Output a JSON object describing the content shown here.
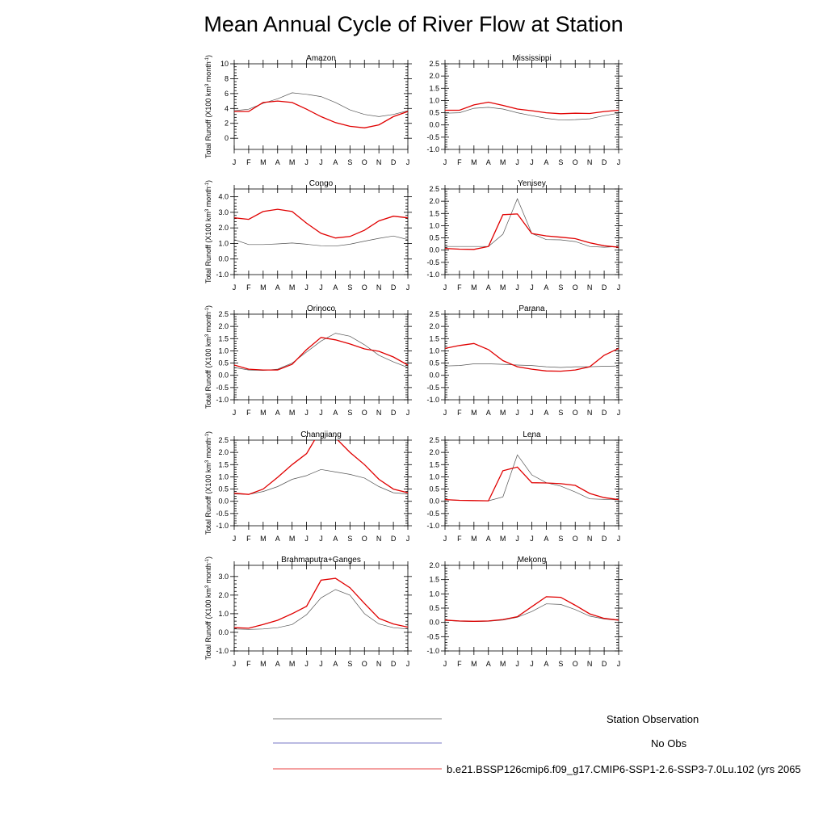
{
  "figure_title": "Mean Annual Cycle of River Flow at Station",
  "ylabel_text": "Total Runoff (X100 km",
  "ylabel_sup": "3",
  "ylabel_mid": " month",
  "ylabel_sup2": "-1",
  "ylabel_end": ")",
  "legend": [
    {
      "label": "Station Observation",
      "color": "#555555"
    },
    {
      "label": "No Obs",
      "color": "#4a4ab0"
    },
    {
      "label": "b.e21.BSSP126cmip6.f09_g17.CMIP6-SSP1-2.6-SSP3-7.0Lu.102 (yrs 2065",
      "color": "#e00000"
    }
  ],
  "chart_data": [
    {
      "type": "line",
      "title": "Amazon",
      "categories": [
        "J",
        "F",
        "M",
        "A",
        "M",
        "J",
        "J",
        "A",
        "S",
        "O",
        "N",
        "D",
        "J"
      ],
      "ylim": [
        -1.5,
        10
      ],
      "yticks": [
        0,
        2,
        4,
        6,
        8,
        10
      ],
      "ytick_labels": [
        "0",
        "2",
        "4",
        "6",
        "8",
        "10"
      ],
      "series": [
        {
          "name": "Station Observation",
          "color": "#555555",
          "values": [
            3.7,
            3.9,
            4.7,
            5.3,
            6.1,
            5.9,
            5.6,
            4.8,
            3.8,
            3.2,
            2.9,
            3.2,
            3.7
          ]
        },
        {
          "name": "Model",
          "color": "#e00000",
          "values": [
            3.6,
            3.6,
            4.8,
            5.0,
            4.8,
            3.9,
            2.9,
            2.1,
            1.6,
            1.4,
            1.8,
            2.9,
            3.6
          ]
        }
      ]
    },
    {
      "type": "line",
      "title": "Mississippi",
      "categories": [
        "J",
        "F",
        "M",
        "A",
        "M",
        "J",
        "J",
        "A",
        "S",
        "O",
        "N",
        "D",
        "J"
      ],
      "ylim": [
        -1.0,
        2.5
      ],
      "yticks": [
        -1.0,
        -0.5,
        0.0,
        0.5,
        1.0,
        1.5,
        2.0,
        2.5
      ],
      "ytick_labels": [
        "-1.0",
        "-0.5",
        "0.0",
        "0.5",
        "1.0",
        "1.5",
        "2.0",
        "2.5"
      ],
      "series": [
        {
          "name": "Station Observation",
          "color": "#555555",
          "values": [
            0.48,
            0.5,
            0.68,
            0.72,
            0.65,
            0.5,
            0.38,
            0.27,
            0.2,
            0.22,
            0.25,
            0.38,
            0.48
          ]
        },
        {
          "name": "Model",
          "color": "#e00000",
          "values": [
            0.6,
            0.6,
            0.82,
            0.93,
            0.8,
            0.65,
            0.58,
            0.5,
            0.46,
            0.48,
            0.47,
            0.55,
            0.6
          ]
        }
      ]
    },
    {
      "type": "line",
      "title": "Congo",
      "categories": [
        "J",
        "F",
        "M",
        "A",
        "M",
        "J",
        "J",
        "A",
        "S",
        "O",
        "N",
        "D",
        "J"
      ],
      "ylim": [
        -1.0,
        4.5
      ],
      "yticks": [
        -1.0,
        0.0,
        1.0,
        2.0,
        3.0,
        4.0
      ],
      "ytick_labels": [
        "-1.0",
        "0.0",
        "1.0",
        "2.0",
        "3.0",
        "4.0"
      ],
      "series": [
        {
          "name": "Station Observation",
          "color": "#555555",
          "values": [
            1.25,
            0.93,
            0.93,
            0.97,
            1.03,
            0.95,
            0.85,
            0.83,
            0.95,
            1.15,
            1.33,
            1.48,
            1.25
          ]
        },
        {
          "name": "Model",
          "color": "#e00000",
          "values": [
            2.65,
            2.55,
            3.05,
            3.2,
            3.05,
            2.3,
            1.65,
            1.35,
            1.45,
            1.85,
            2.45,
            2.75,
            2.65
          ]
        }
      ]
    },
    {
      "type": "line",
      "title": "Yenisey",
      "categories": [
        "J",
        "F",
        "M",
        "A",
        "M",
        "J",
        "J",
        "A",
        "S",
        "O",
        "N",
        "D",
        "J"
      ],
      "ylim": [
        -1.0,
        2.5
      ],
      "yticks": [
        -1.0,
        -0.5,
        0.0,
        0.5,
        1.0,
        1.5,
        2.0,
        2.5
      ],
      "ytick_labels": [
        "-1.0",
        "-0.5",
        "0.0",
        "0.5",
        "1.0",
        "1.5",
        "2.0",
        "2.5"
      ],
      "series": [
        {
          "name": "Station Observation",
          "color": "#555555",
          "values": [
            0.15,
            0.15,
            0.15,
            0.15,
            0.65,
            2.1,
            0.68,
            0.43,
            0.42,
            0.35,
            0.15,
            0.12,
            0.15
          ]
        },
        {
          "name": "Model",
          "color": "#e00000",
          "values": [
            0.07,
            0.04,
            0.03,
            0.15,
            1.45,
            1.48,
            0.68,
            0.58,
            0.53,
            0.47,
            0.3,
            0.18,
            0.12
          ]
        }
      ]
    },
    {
      "type": "line",
      "title": "Orinoco",
      "categories": [
        "J",
        "F",
        "M",
        "A",
        "M",
        "J",
        "J",
        "A",
        "S",
        "O",
        "N",
        "D",
        "J"
      ],
      "ylim": [
        -1.0,
        2.5
      ],
      "yticks": [
        -1.0,
        -0.5,
        0.0,
        0.5,
        1.0,
        1.5,
        2.0,
        2.5
      ],
      "ytick_labels": [
        "-1.0",
        "-0.5",
        "0.0",
        "0.5",
        "1.0",
        "1.5",
        "2.0",
        "2.5"
      ],
      "series": [
        {
          "name": "Station Observation",
          "color": "#555555",
          "values": [
            0.32,
            0.22,
            0.2,
            0.25,
            0.5,
            0.95,
            1.4,
            1.72,
            1.6,
            1.25,
            0.82,
            0.55,
            0.32
          ]
        },
        {
          "name": "Model",
          "color": "#e00000",
          "values": [
            0.42,
            0.25,
            0.22,
            0.22,
            0.45,
            1.05,
            1.55,
            1.45,
            1.28,
            1.08,
            0.98,
            0.75,
            0.42
          ]
        }
      ]
    },
    {
      "type": "line",
      "title": "Parana",
      "categories": [
        "J",
        "F",
        "M",
        "A",
        "M",
        "J",
        "J",
        "A",
        "S",
        "O",
        "N",
        "D",
        "J"
      ],
      "ylim": [
        -1.0,
        2.5
      ],
      "yticks": [
        -1.0,
        -0.5,
        0.0,
        0.5,
        1.0,
        1.5,
        2.0,
        2.5
      ],
      "ytick_labels": [
        "-1.0",
        "-0.5",
        "0.0",
        "0.5",
        "1.0",
        "1.5",
        "2.0",
        "2.5"
      ],
      "series": [
        {
          "name": "Station Observation",
          "color": "#555555",
          "values": [
            0.38,
            0.4,
            0.47,
            0.47,
            0.45,
            0.42,
            0.4,
            0.35,
            0.32,
            0.35,
            0.35,
            0.37,
            0.38
          ]
        },
        {
          "name": "Model",
          "color": "#e00000",
          "values": [
            1.1,
            1.22,
            1.3,
            1.05,
            0.6,
            0.35,
            0.25,
            0.18,
            0.17,
            0.22,
            0.35,
            0.82,
            1.1
          ]
        }
      ]
    },
    {
      "type": "line",
      "title": "Changjiang",
      "categories": [
        "J",
        "F",
        "M",
        "A",
        "M",
        "J",
        "J",
        "A",
        "S",
        "O",
        "N",
        "D",
        "J"
      ],
      "ylim": [
        -1.0,
        2.5
      ],
      "yticks": [
        -1.0,
        -0.5,
        0.0,
        0.5,
        1.0,
        1.5,
        2.0,
        2.5
      ],
      "ytick_labels": [
        "-1.0",
        "-0.5",
        "0.0",
        "0.5",
        "1.0",
        "1.5",
        "2.0",
        "2.5"
      ],
      "series": [
        {
          "name": "Station Observation",
          "color": "#555555",
          "values": [
            0.3,
            0.28,
            0.4,
            0.6,
            0.9,
            1.05,
            1.3,
            1.2,
            1.1,
            0.95,
            0.6,
            0.35,
            0.3
          ]
        },
        {
          "name": "Model",
          "color": "#e00000",
          "values": [
            0.33,
            0.28,
            0.5,
            0.98,
            1.5,
            1.95,
            2.95,
            2.6,
            2.0,
            1.5,
            0.9,
            0.5,
            0.35
          ]
        }
      ]
    },
    {
      "type": "line",
      "title": "Lena",
      "categories": [
        "J",
        "F",
        "M",
        "A",
        "M",
        "J",
        "J",
        "A",
        "S",
        "O",
        "N",
        "D",
        "J"
      ],
      "ylim": [
        -1.0,
        2.5
      ],
      "yticks": [
        -1.0,
        -0.5,
        0.0,
        0.5,
        1.0,
        1.5,
        2.0,
        2.5
      ],
      "ytick_labels": [
        "-1.0",
        "-0.5",
        "0.0",
        "0.5",
        "1.0",
        "1.5",
        "2.0",
        "2.5"
      ],
      "series": [
        {
          "name": "Station Observation",
          "color": "#555555",
          "values": [
            0.06,
            0.04,
            0.03,
            0.02,
            0.18,
            1.9,
            1.08,
            0.76,
            0.62,
            0.38,
            0.1,
            0.08,
            0.06
          ]
        },
        {
          "name": "Model",
          "color": "#e00000",
          "values": [
            0.07,
            0.04,
            0.03,
            0.02,
            1.25,
            1.4,
            0.76,
            0.75,
            0.72,
            0.65,
            0.32,
            0.15,
            0.07
          ]
        }
      ]
    },
    {
      "type": "line",
      "title": "Brahmaputra+Ganges",
      "categories": [
        "J",
        "F",
        "M",
        "A",
        "M",
        "J",
        "J",
        "A",
        "S",
        "O",
        "N",
        "D",
        "J"
      ],
      "ylim": [
        -1.0,
        3.6
      ],
      "yticks": [
        -1.0,
        0.0,
        1.0,
        2.0,
        3.0
      ],
      "ytick_labels": [
        "-1.0",
        "0.0",
        "1.0",
        "2.0",
        "3.0"
      ],
      "series": [
        {
          "name": "Station Observation",
          "color": "#555555",
          "values": [
            0.18,
            0.16,
            0.18,
            0.25,
            0.42,
            0.95,
            1.85,
            2.3,
            2.0,
            1.0,
            0.45,
            0.25,
            0.18
          ]
        },
        {
          "name": "Model",
          "color": "#e00000",
          "values": [
            0.25,
            0.22,
            0.42,
            0.65,
            1.0,
            1.4,
            2.8,
            2.9,
            2.4,
            1.55,
            0.75,
            0.45,
            0.28
          ]
        }
      ]
    },
    {
      "type": "line",
      "title": "Mekong",
      "categories": [
        "J",
        "F",
        "M",
        "A",
        "M",
        "J",
        "J",
        "A",
        "S",
        "O",
        "N",
        "D",
        "J"
      ],
      "ylim": [
        -1.0,
        2.0
      ],
      "yticks": [
        -1.0,
        -0.5,
        0.0,
        0.5,
        1.0,
        1.5,
        2.0
      ],
      "ytick_labels": [
        "-1.0",
        "-0.5",
        "0.0",
        "0.5",
        "1.0",
        "1.5",
        "2.0"
      ],
      "series": [
        {
          "name": "Station Observation",
          "color": "#555555",
          "values": [
            0.07,
            0.04,
            0.03,
            0.04,
            0.08,
            0.18,
            0.38,
            0.65,
            0.63,
            0.45,
            0.22,
            0.12,
            0.07
          ]
        },
        {
          "name": "Model",
          "color": "#e00000",
          "values": [
            0.08,
            0.05,
            0.04,
            0.05,
            0.1,
            0.2,
            0.55,
            0.9,
            0.88,
            0.6,
            0.3,
            0.14,
            0.08
          ]
        }
      ]
    }
  ]
}
